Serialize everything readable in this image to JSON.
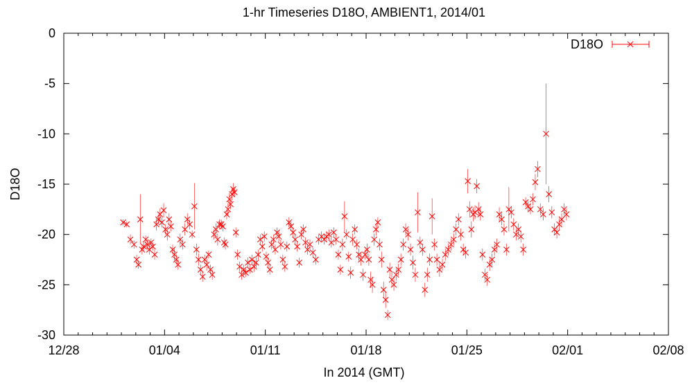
{
  "chart_data": {
    "type": "scatter",
    "title": "1-hr Timeseries D18O, AMBIENT1, 2014/01",
    "xlabel": "In 2014 (GMT)",
    "ylabel": "D18O",
    "x_start": "2013-12-28",
    "x_tick_labels": [
      "12/28",
      "01/04",
      "01/11",
      "01/18",
      "01/25",
      "02/01",
      "02/08"
    ],
    "xlim": [
      "2013-12-28",
      "2014-02-08"
    ],
    "ylim": [
      -30,
      0
    ],
    "y_ticks": [
      0,
      -5,
      -10,
      -15,
      -20,
      -25,
      -30
    ],
    "y_tick_labels": [
      "0",
      "-5",
      "-10",
      "-15",
      "-20",
      "-25",
      "-30"
    ],
    "grid": false,
    "legend_position": "top-right",
    "series": [
      {
        "name": "D18O",
        "color": "#ff0000",
        "marker": "x",
        "error_bars": true,
        "points": [
          [
            "2014-01-01",
            -18.8,
            0.3
          ],
          [
            "2014-01-01",
            -19.0,
            0.3
          ],
          [
            "2014-01-01",
            -20.5,
            0.5
          ],
          [
            "2014-01-01",
            -21.0,
            0.4
          ],
          [
            "2014-01-02",
            -22.5,
            0.5
          ],
          [
            "2014-01-02",
            -23.0,
            0.4
          ],
          [
            "2014-01-02",
            -18.5,
            2.5
          ],
          [
            "2014-01-02",
            -21.5,
            0.5
          ],
          [
            "2014-01-02",
            -21.2,
            0.4
          ],
          [
            "2014-01-02",
            -20.5,
            0.4
          ],
          [
            "2014-01-02",
            -21.0,
            0.5
          ],
          [
            "2014-01-02",
            -21.5,
            0.5
          ],
          [
            "2014-01-03",
            -20.8,
            0.4
          ],
          [
            "2014-01-03",
            -21.2,
            0.4
          ],
          [
            "2014-01-03",
            -22.0,
            0.5
          ],
          [
            "2014-01-03",
            -19.0,
            0.6
          ],
          [
            "2014-01-03",
            -18.5,
            0.5
          ],
          [
            "2014-01-03",
            -18.0,
            0.6
          ],
          [
            "2014-01-03",
            -18.8,
            0.5
          ],
          [
            "2014-01-03",
            -17.6,
            0.7
          ],
          [
            "2014-01-04",
            -19.5,
            0.5
          ],
          [
            "2014-01-04",
            -20.0,
            0.6
          ],
          [
            "2014-01-04",
            -18.5,
            0.6
          ],
          [
            "2014-01-04",
            -19.2,
            0.5
          ],
          [
            "2014-01-04",
            -21.5,
            0.5
          ],
          [
            "2014-01-04",
            -22.0,
            0.6
          ],
          [
            "2014-01-04",
            -22.5,
            0.5
          ],
          [
            "2014-01-04",
            -23.0,
            0.5
          ],
          [
            "2014-01-05",
            -20.5,
            0.6
          ],
          [
            "2014-01-05",
            -21.0,
            0.5
          ],
          [
            "2014-01-05",
            -19.5,
            0.6
          ],
          [
            "2014-01-05",
            -18.5,
            0.6
          ],
          [
            "2014-01-05",
            -19.0,
            0.5
          ],
          [
            "2014-01-05",
            -20.0,
            0.4
          ],
          [
            "2014-01-06",
            -17.2,
            2.3
          ],
          [
            "2014-01-06",
            -21.5,
            0.6
          ],
          [
            "2014-01-06",
            -22.5,
            0.6
          ],
          [
            "2014-01-06",
            -23.5,
            0.5
          ],
          [
            "2014-01-06",
            -24.2,
            0.5
          ],
          [
            "2014-01-06",
            -22.5,
            0.5
          ],
          [
            "2014-01-06",
            -23.0,
            0.6
          ],
          [
            "2014-01-07",
            -22.0,
            0.4
          ],
          [
            "2014-01-07",
            -23.5,
            0.5
          ],
          [
            "2014-01-07",
            -24.0,
            0.5
          ],
          [
            "2014-01-07",
            -20.0,
            0.5
          ],
          [
            "2014-01-07",
            -19.5,
            0.6
          ],
          [
            "2014-01-07",
            -20.5,
            0.6
          ],
          [
            "2014-01-07",
            -19.0,
            0.5
          ],
          [
            "2014-01-07",
            -19.0,
            0.5
          ],
          [
            "2014-01-08",
            -19.2,
            0.5
          ],
          [
            "2014-01-08",
            -20.8,
            0.5
          ],
          [
            "2014-01-08",
            -21.0,
            0.5
          ],
          [
            "2014-01-08",
            -18.0,
            0.5
          ],
          [
            "2014-01-08",
            -17.5,
            0.6
          ],
          [
            "2014-01-08",
            -16.5,
            0.6
          ],
          [
            "2014-01-08",
            -17.0,
            0.5
          ],
          [
            "2014-01-08",
            -16.0,
            0.6
          ],
          [
            "2014-01-08",
            -15.5,
            0.6
          ],
          [
            "2014-01-08",
            -15.8,
            0.5
          ],
          [
            "2014-01-08",
            -19.8,
            0.5
          ],
          [
            "2014-01-09",
            -22.0,
            0.5
          ],
          [
            "2014-01-09",
            -23.2,
            0.5
          ],
          [
            "2014-01-09",
            -24.0,
            0.5
          ],
          [
            "2014-01-09",
            -23.5,
            0.5
          ],
          [
            "2014-01-09",
            -23.8,
            0.4
          ],
          [
            "2014-01-09",
            -22.8,
            0.5
          ],
          [
            "2014-01-09",
            -23.5,
            0.4
          ],
          [
            "2014-01-10",
            -22.5,
            0.5
          ],
          [
            "2014-01-10",
            -23.2,
            0.5
          ],
          [
            "2014-01-10",
            -22.8,
            0.5
          ],
          [
            "2014-01-10",
            -22.0,
            0.5
          ],
          [
            "2014-01-10",
            -20.5,
            0.5
          ],
          [
            "2014-01-10",
            -21.2,
            0.5
          ],
          [
            "2014-01-10",
            -20.2,
            0.5
          ],
          [
            "2014-01-11",
            -22.2,
            0.5
          ],
          [
            "2014-01-11",
            -22.8,
            0.5
          ],
          [
            "2014-01-11",
            -23.5,
            0.5
          ],
          [
            "2014-01-11",
            -21.0,
            0.5
          ],
          [
            "2014-01-11",
            -20.5,
            0.5
          ],
          [
            "2014-01-11",
            -21.5,
            0.5
          ],
          [
            "2014-01-11",
            -19.8,
            0.5
          ],
          [
            "2014-01-11",
            -20.2,
            0.5
          ],
          [
            "2014-01-12",
            -21.0,
            0.5
          ],
          [
            "2014-01-12",
            -22.5,
            0.5
          ],
          [
            "2014-01-12",
            -23.2,
            0.5
          ],
          [
            "2014-01-12",
            -21.2,
            0.5
          ],
          [
            "2014-01-12",
            -18.8,
            0.5
          ],
          [
            "2014-01-12",
            -19.2,
            0.5
          ],
          [
            "2014-01-12",
            -19.8,
            0.5
          ],
          [
            "2014-01-13",
            -20.5,
            0.5
          ],
          [
            "2014-01-13",
            -21.2,
            0.5
          ],
          [
            "2014-01-13",
            -22.8,
            0.5
          ],
          [
            "2014-01-13",
            -20.0,
            0.5
          ],
          [
            "2014-01-13",
            -19.5,
            0.5
          ],
          [
            "2014-01-13",
            -20.8,
            0.5
          ],
          [
            "2014-01-13",
            -21.5,
            0.5
          ],
          [
            "2014-01-14",
            -21.0,
            0.5
          ],
          [
            "2014-01-14",
            -21.8,
            0.5
          ],
          [
            "2014-01-14",
            -22.5,
            0.5
          ],
          [
            "2014-01-14",
            -20.5,
            0.5
          ],
          [
            "2014-01-14",
            -20.2,
            0.5
          ],
          [
            "2014-01-15",
            -20.5,
            0.5
          ],
          [
            "2014-01-15",
            -20.2,
            0.5
          ],
          [
            "2014-01-15",
            -20.0,
            0.5
          ],
          [
            "2014-01-15",
            -20.8,
            0.5
          ],
          [
            "2014-01-15",
            -19.8,
            0.5
          ],
          [
            "2014-01-15",
            -20.5,
            0.5
          ],
          [
            "2014-01-16",
            -22.0,
            0.5
          ],
          [
            "2014-01-16",
            -23.5,
            0.5
          ],
          [
            "2014-01-16",
            -21.0,
            0.6
          ],
          [
            "2014-01-16",
            -18.2,
            1.5
          ],
          [
            "2014-01-16",
            -20.0,
            0.5
          ],
          [
            "2014-01-16",
            -22.2,
            0.5
          ],
          [
            "2014-01-16",
            -23.8,
            0.6
          ],
          [
            "2014-01-17",
            -20.5,
            0.6
          ],
          [
            "2014-01-17",
            -19.5,
            0.5
          ],
          [
            "2014-01-17",
            -21.0,
            0.5
          ],
          [
            "2014-01-17",
            -22.0,
            0.6
          ],
          [
            "2014-01-17",
            -22.5,
            0.6
          ],
          [
            "2014-01-17",
            -24.0,
            0.6
          ],
          [
            "2014-01-17",
            -22.0,
            0.5
          ],
          [
            "2014-01-18",
            -21.5,
            0.6
          ],
          [
            "2014-01-18",
            -22.5,
            0.6
          ],
          [
            "2014-01-18",
            -24.5,
            0.8
          ],
          [
            "2014-01-18",
            -25.0,
            0.8
          ],
          [
            "2014-01-18",
            -20.5,
            0.6
          ],
          [
            "2014-01-18",
            -19.5,
            0.6
          ],
          [
            "2014-01-18",
            -18.8,
            0.5
          ],
          [
            "2014-01-18",
            -21.0,
            0.6
          ],
          [
            "2014-01-19",
            -22.5,
            0.8
          ],
          [
            "2014-01-19",
            -25.5,
            0.8
          ],
          [
            "2014-01-19",
            -26.5,
            0.8
          ],
          [
            "2014-01-19",
            -28.0,
            0.5
          ],
          [
            "2014-01-19",
            -23.5,
            0.7
          ],
          [
            "2014-01-19",
            -24.5,
            0.7
          ],
          [
            "2014-01-19",
            -25.0,
            0.6
          ],
          [
            "2014-01-20",
            -24.0,
            0.6
          ],
          [
            "2014-01-20",
            -23.5,
            0.6
          ],
          [
            "2014-01-20",
            -22.5,
            0.6
          ],
          [
            "2014-01-20",
            -21.0,
            0.6
          ],
          [
            "2014-01-20",
            -19.5,
            0.6
          ],
          [
            "2014-01-20",
            -20.0,
            0.6
          ],
          [
            "2014-01-21",
            -21.5,
            0.6
          ],
          [
            "2014-01-21",
            -22.8,
            0.7
          ],
          [
            "2014-01-21",
            -24.0,
            0.7
          ],
          [
            "2014-01-21",
            -17.8,
            2.0
          ],
          [
            "2014-01-21",
            -20.8,
            0.6
          ],
          [
            "2014-01-21",
            -21.5,
            0.6
          ],
          [
            "2014-01-22",
            -25.5,
            0.7
          ],
          [
            "2014-01-22",
            -24.0,
            0.7
          ],
          [
            "2014-01-22",
            -22.5,
            0.6
          ],
          [
            "2014-01-22",
            -18.2,
            1.8
          ],
          [
            "2014-01-22",
            -21.0,
            0.6
          ],
          [
            "2014-01-22",
            -22.5,
            0.6
          ],
          [
            "2014-01-23",
            -23.5,
            0.7
          ],
          [
            "2014-01-23",
            -23.0,
            0.6
          ],
          [
            "2014-01-23",
            -22.0,
            0.6
          ],
          [
            "2014-01-23",
            -21.5,
            0.6
          ],
          [
            "2014-01-23",
            -21.0,
            0.6
          ],
          [
            "2014-01-24",
            -20.5,
            0.6
          ],
          [
            "2014-01-24",
            -19.5,
            0.6
          ],
          [
            "2014-01-24",
            -18.5,
            0.6
          ],
          [
            "2014-01-24",
            -20.0,
            0.6
          ],
          [
            "2014-01-24",
            -21.5,
            0.6
          ],
          [
            "2014-01-24",
            -21.8,
            0.6
          ],
          [
            "2014-01-25",
            -14.7,
            1.2
          ],
          [
            "2014-01-25",
            -17.5,
            0.8
          ],
          [
            "2014-01-25",
            -19.5,
            0.8
          ],
          [
            "2014-01-25",
            -18.0,
            0.7
          ],
          [
            "2014-01-25",
            -17.8,
            0.7
          ],
          [
            "2014-01-25",
            -15.2,
            0.7
          ],
          [
            "2014-01-25",
            -17.5,
            0.7
          ],
          [
            "2014-01-25",
            -18.0,
            0.6
          ],
          [
            "2014-01-26",
            -22.0,
            0.6
          ],
          [
            "2014-01-26",
            -24.0,
            0.6
          ],
          [
            "2014-01-26",
            -24.5,
            0.6
          ],
          [
            "2014-01-26",
            -23.0,
            0.6
          ],
          [
            "2014-01-26",
            -22.5,
            0.6
          ],
          [
            "2014-01-26",
            -21.5,
            0.6
          ],
          [
            "2014-01-27",
            -21.0,
            0.6
          ],
          [
            "2014-01-27",
            -18.0,
            0.7
          ],
          [
            "2014-01-27",
            -18.5,
            0.6
          ],
          [
            "2014-01-27",
            -19.5,
            0.6
          ],
          [
            "2014-01-27",
            -21.5,
            0.6
          ],
          [
            "2014-01-27",
            -17.5,
            2.2
          ],
          [
            "2014-01-28",
            -17.8,
            0.6
          ],
          [
            "2014-01-28",
            -19.0,
            0.6
          ],
          [
            "2014-01-28",
            -20.0,
            0.6
          ],
          [
            "2014-01-28",
            -19.5,
            0.6
          ],
          [
            "2014-01-28",
            -20.2,
            0.6
          ],
          [
            "2014-01-28",
            -21.5,
            0.6
          ],
          [
            "2014-01-29",
            -16.8,
            0.5
          ],
          [
            "2014-01-29",
            -17.2,
            0.5
          ],
          [
            "2014-01-29",
            -17.5,
            0.5
          ],
          [
            "2014-01-29",
            -16.5,
            0.6
          ],
          [
            "2014-01-29",
            -14.8,
            0.8
          ],
          [
            "2014-01-29",
            -13.5,
            0.8
          ],
          [
            "2014-01-30",
            -17.5,
            0.6
          ],
          [
            "2014-01-30",
            -18.0,
            0.6
          ],
          [
            "2014-01-30",
            -10.0,
            5.0
          ],
          [
            "2014-01-30",
            -16.0,
            0.8
          ],
          [
            "2014-01-30",
            -17.8,
            0.6
          ],
          [
            "2014-01-31",
            -19.5,
            0.6
          ],
          [
            "2014-01-31",
            -19.8,
            0.6
          ],
          [
            "2014-01-31",
            -19.0,
            0.6
          ],
          [
            "2014-01-31",
            -18.5,
            0.6
          ],
          [
            "2014-01-31",
            -17.5,
            0.6
          ],
          [
            "2014-01-31",
            -18.0,
            0.6
          ]
        ]
      }
    ]
  }
}
